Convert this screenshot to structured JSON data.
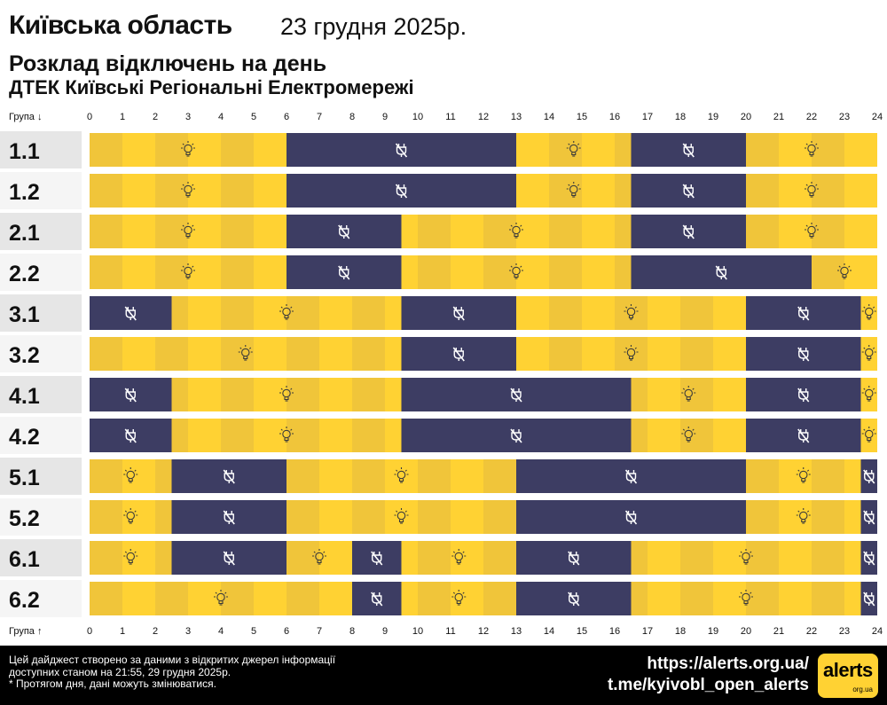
{
  "header": {
    "region": "Київська область",
    "date": "23 грудня 2025р.",
    "subtitle1": "Розклад відключень на день",
    "subtitle2": "ДТЕК Київські Регіональні Електромережі"
  },
  "footer": {
    "note_line1": "Цей дайджест створено за даними з відкритих джерел інформації",
    "note_line2": "доступних станом на 21:55, 29 грудня 2025р.",
    "note_line3": "* Протягом дня, дані можуть змінюватися.",
    "url": "https://alerts.org.ua/",
    "telegram": "t.me/kyivobl_open_alerts",
    "logo_text": "alerts",
    "logo_sub": "org.ua"
  },
  "colors": {
    "on": "#ffd233",
    "off": "#3d3d63",
    "stripe_a": "#f0c53a",
    "stripe_b": "#ffd233",
    "row_label_bg_a": "#e6e6e6",
    "row_label_bg_b": "#f5f5f5"
  },
  "icons": {
    "on": "light-bulb-icon",
    "off": "power-off-icon"
  },
  "chart_data": {
    "type": "table",
    "axis_label_top": "Група ↓",
    "axis_label_bottom": "Група ↑",
    "x_ticks": [
      "0",
      "1",
      "2",
      "3",
      "4",
      "5",
      "6",
      "7",
      "8",
      "9",
      "10",
      "11",
      "12",
      "13",
      "14",
      "15",
      "16",
      "17",
      "18",
      "19",
      "20",
      "21",
      "22",
      "23",
      "24"
    ],
    "x_range": [
      0,
      24
    ],
    "units": "hours",
    "groups": [
      {
        "name": "1.1",
        "outages": [
          [
            6,
            13
          ],
          [
            16.5,
            20
          ]
        ]
      },
      {
        "name": "1.2",
        "outages": [
          [
            6,
            13
          ],
          [
            16.5,
            20
          ]
        ]
      },
      {
        "name": "2.1",
        "outages": [
          [
            6,
            9.5
          ],
          [
            16.5,
            20
          ]
        ]
      },
      {
        "name": "2.2",
        "outages": [
          [
            6,
            9.5
          ],
          [
            16.5,
            22
          ]
        ]
      },
      {
        "name": "3.1",
        "outages": [
          [
            0,
            2.5
          ],
          [
            9.5,
            13
          ],
          [
            20,
            23.5
          ]
        ]
      },
      {
        "name": "3.2",
        "outages": [
          [
            9.5,
            13
          ],
          [
            20,
            23.5
          ]
        ]
      },
      {
        "name": "4.1",
        "outages": [
          [
            0,
            2.5
          ],
          [
            9.5,
            16.5
          ],
          [
            20,
            23.5
          ]
        ]
      },
      {
        "name": "4.2",
        "outages": [
          [
            0,
            2.5
          ],
          [
            9.5,
            16.5
          ],
          [
            20,
            23.5
          ]
        ]
      },
      {
        "name": "5.1",
        "outages": [
          [
            2.5,
            6
          ],
          [
            13,
            20
          ],
          [
            23.5,
            24
          ]
        ]
      },
      {
        "name": "5.2",
        "outages": [
          [
            2.5,
            6
          ],
          [
            13,
            20
          ],
          [
            23.5,
            24
          ]
        ]
      },
      {
        "name": "6.1",
        "outages": [
          [
            2.5,
            6
          ],
          [
            8,
            9.5
          ],
          [
            13,
            16.5
          ],
          [
            23.5,
            24
          ]
        ]
      },
      {
        "name": "6.2",
        "outages": [
          [
            8,
            9.5
          ],
          [
            13,
            16.5
          ],
          [
            23.5,
            24
          ]
        ]
      }
    ]
  }
}
